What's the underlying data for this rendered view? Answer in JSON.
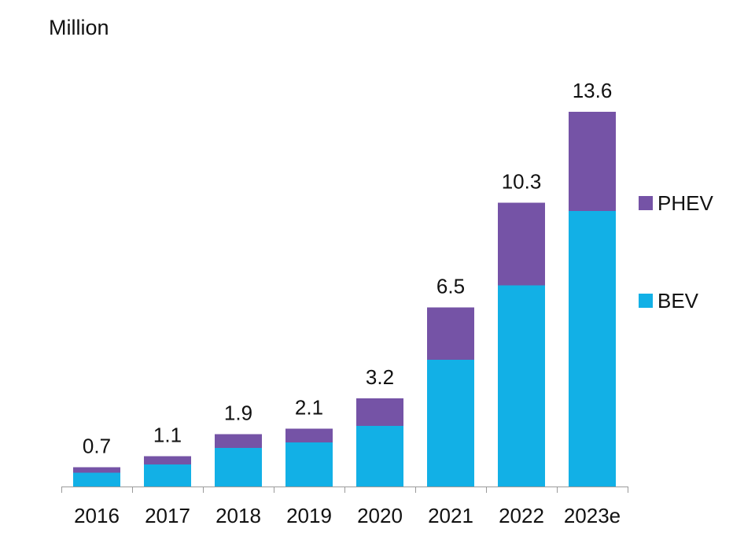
{
  "unit_label": "Million",
  "colors": {
    "bev": "#12b0e6",
    "phev": "#7553a6",
    "axis": "#9a9a9a",
    "text": "#111111"
  },
  "chart_data": {
    "type": "bar",
    "stacked": true,
    "categories": [
      "2016",
      "2017",
      "2018",
      "2019",
      "2020",
      "2021",
      "2022",
      "2023e"
    ],
    "series": [
      {
        "name": "BEV",
        "values": [
          0.5,
          0.8,
          1.4,
          1.6,
          2.2,
          4.6,
          7.3,
          10.0
        ]
      },
      {
        "name": "PHEV",
        "values": [
          0.2,
          0.3,
          0.5,
          0.5,
          1.0,
          1.9,
          3.0,
          3.6
        ]
      }
    ],
    "totals": [
      "0.7",
      "1.1",
      "1.9",
      "2.1",
      "3.2",
      "6.5",
      "10.3",
      "13.6"
    ],
    "ylim": [
      0,
      13.6
    ],
    "ylabel": "Million",
    "legend_position": "right",
    "grid": false
  }
}
